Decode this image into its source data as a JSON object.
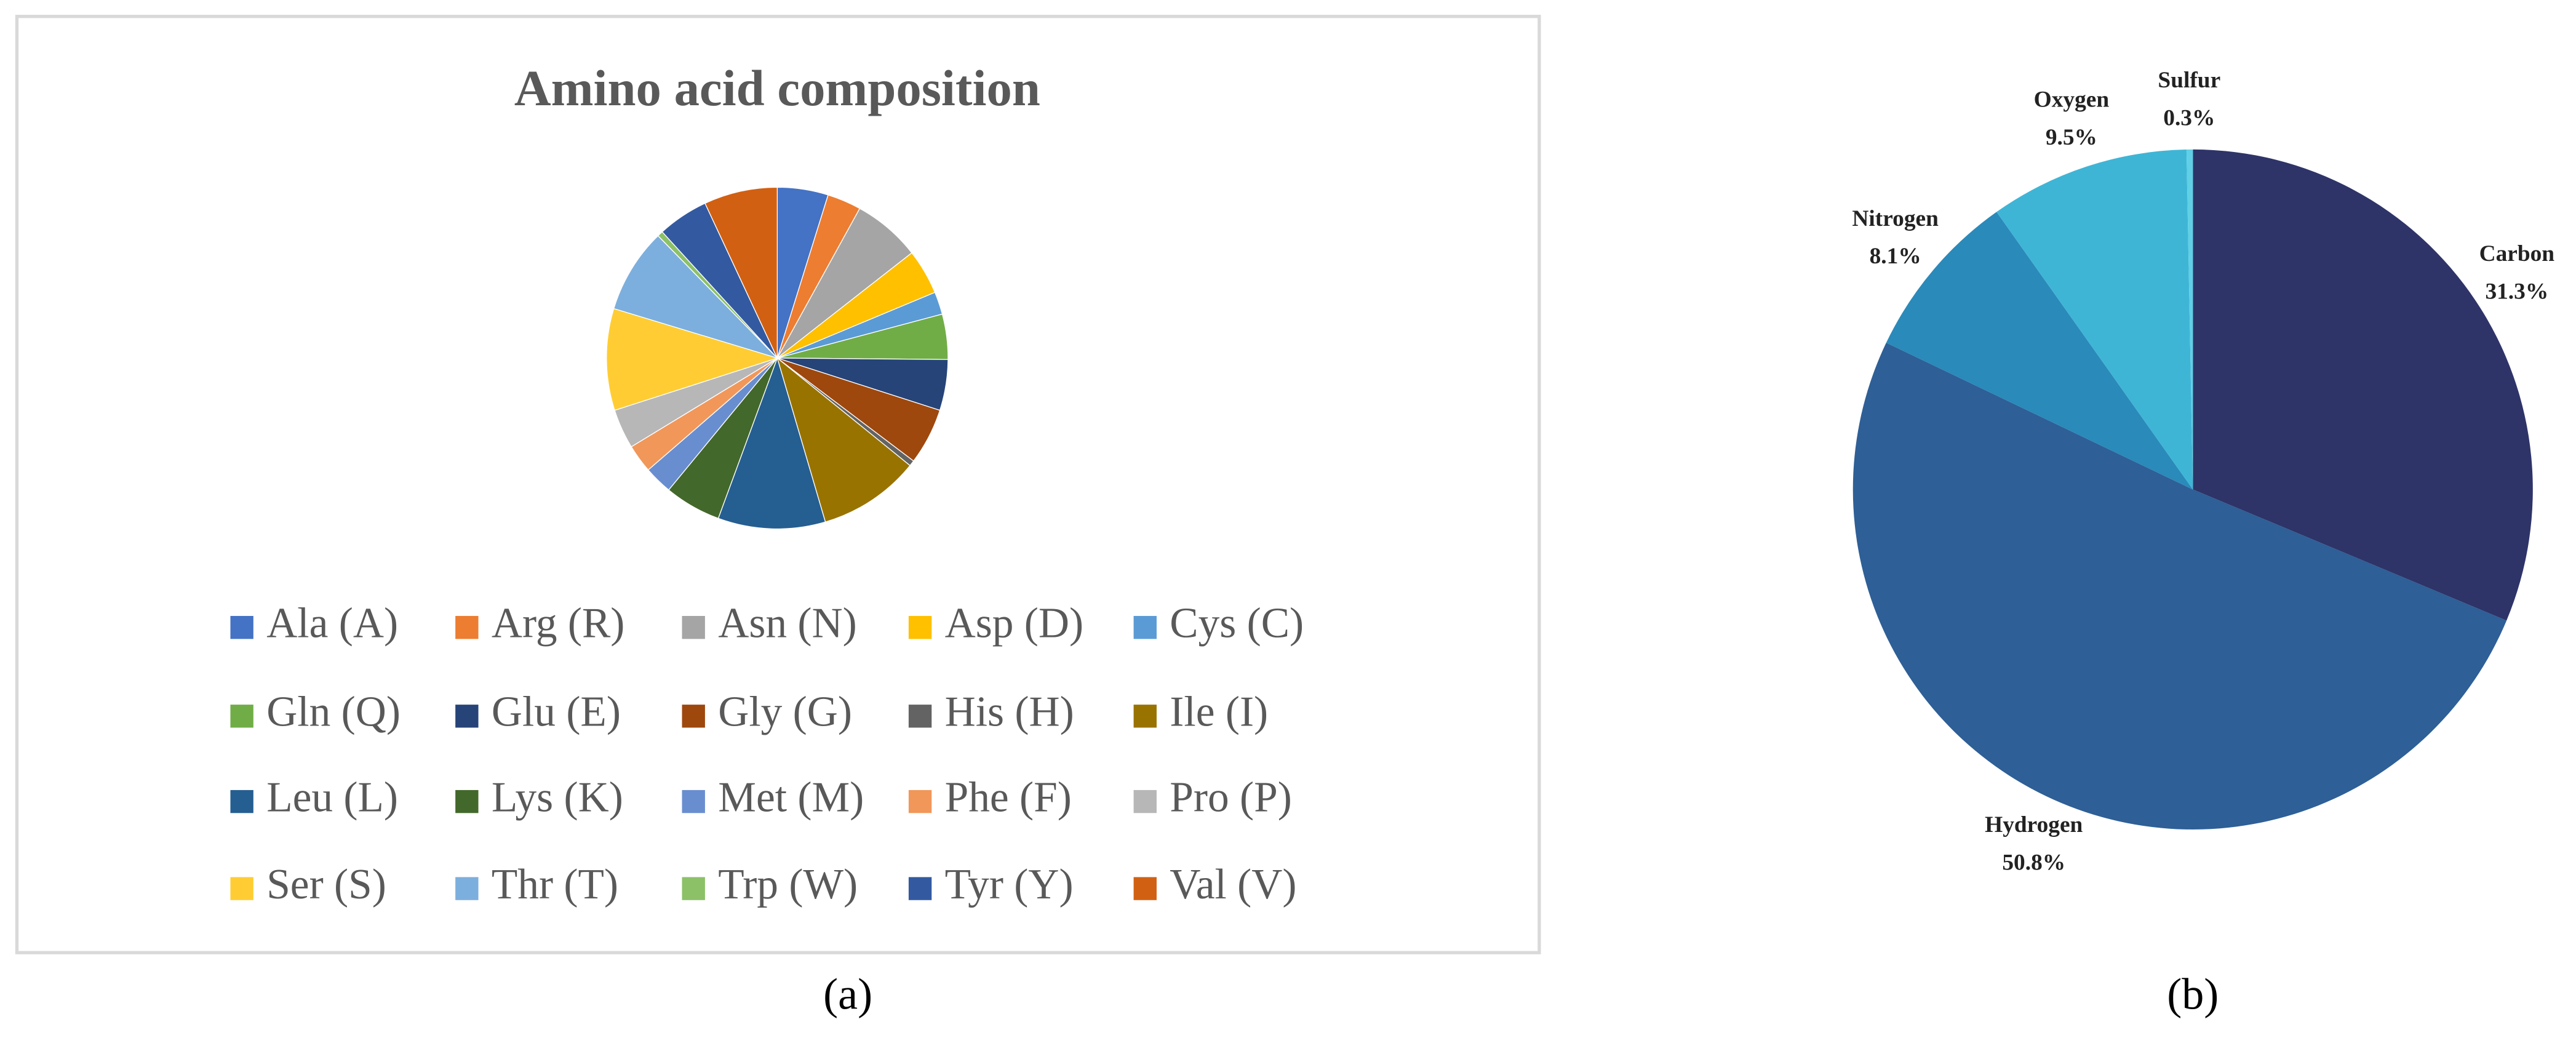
{
  "chart_data": [
    {
      "type": "pie",
      "title": "Amino acid composition",
      "panel_label": "(a)",
      "categories": [
        "Ala (A)",
        "Arg (R)",
        "Asn (N)",
        "Asp (D)",
        "Cys (C)",
        "Gln (Q)",
        "Glu (E)",
        "Gly (G)",
        "His (H)",
        "Ile (I)",
        "Leu (L)",
        "Lys (K)",
        "Met (M)",
        "Phe (F)",
        "Pro (P)",
        "Ser (S)",
        "Thr (T)",
        "Trp (W)",
        "Tyr (Y)",
        "Val (V)"
      ],
      "values": [
        4.5,
        3,
        6,
        4,
        2,
        4,
        4.5,
        5,
        0.5,
        9,
        9.5,
        5,
        2.5,
        2.5,
        3.5,
        9,
        7.5,
        0.5,
        4.5,
        6.5
      ],
      "colors": [
        "#4472c4",
        "#ed7d31",
        "#a5a5a5",
        "#ffc000",
        "#5b9bd5",
        "#70ad47",
        "#264478",
        "#9e480e",
        "#636363",
        "#997300",
        "#255e91",
        "#43682b",
        "#698ed0",
        "#f1975a",
        "#b7b7b7",
        "#ffcd33",
        "#7cafdd",
        "#8cc168",
        "#335aa1",
        "#d26012"
      ],
      "legend": "bottom"
    },
    {
      "type": "pie",
      "panel_label": "(b)",
      "categories": [
        "Carbon",
        "Hydrogen",
        "Nitrogen",
        "Oxygen",
        "Sulfur"
      ],
      "values": [
        31.3,
        50.8,
        8.1,
        9.5,
        0.3
      ],
      "value_labels": [
        "31.3%",
        "50.8%",
        "8.1%",
        "9.5%",
        "0.3%"
      ],
      "colors": [
        "#2e3468",
        "#2e5f96",
        "#2a8aba",
        "#3fb5d6",
        "#5fd0e6"
      ]
    }
  ]
}
